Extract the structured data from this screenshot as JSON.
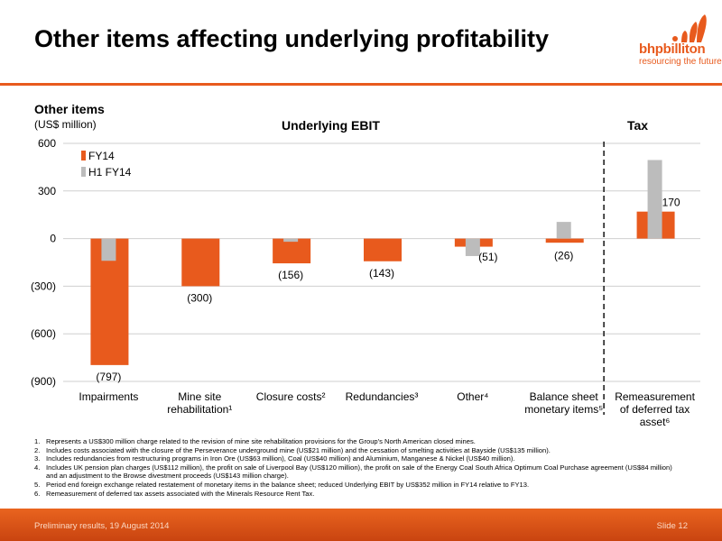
{
  "slide": {
    "title": "Other items affecting underlying profitability",
    "logo": {
      "word": "bhpbilliton",
      "tagline": "resourcing the future",
      "color": "#e85a1d"
    },
    "footer": {
      "left": "Preliminary results, 19 August 2014",
      "right": "Slide 12"
    },
    "footnotes": [
      {
        "num": "1.",
        "text": "Represents a US$300 million charge related to the revision of mine site rehabilitation provisions for the Group's North American closed mines."
      },
      {
        "num": "2.",
        "text": "Includes costs associated with the closure of the Perseverance underground mine (US$21 million) and the cessation of smelting activities at Bayside (US$135 million)."
      },
      {
        "num": "3.",
        "text": "Includes redundancies from restructuring programs in Iron Ore (US$63 million), Coal (US$40 million) and Aluminium, Manganese & Nickel (US$40 million)."
      },
      {
        "num": "4.",
        "text": "Includes UK pension plan charges (US$112 million), the profit on sale of Liverpool Bay (US$120 million), the profit on sale of the Energy Coal South Africa Optimum Coal Purchase agreement (US$84 million) and an adjustment to the Browse divestment proceeds (US$143 million charge)."
      },
      {
        "num": "5.",
        "text": "Period end foreign exchange related restatement of monetary items in the balance sheet; reduced Underlying EBIT by US$352 million in FY14 relative to FY13."
      },
      {
        "num": "6.",
        "text": "Remeasurement of deferred tax assets associated with the Minerals Resource Rent Tax."
      }
    ]
  },
  "chart_data": {
    "type": "bar",
    "title": "Other items",
    "ylabel": "(US$ million)",
    "ylim": [
      -900,
      600
    ],
    "yticks": [
      600,
      300,
      0,
      -300,
      -600,
      -900
    ],
    "ytick_labels": [
      "600",
      "300",
      "0",
      "(300)",
      "(600)",
      "(900)"
    ],
    "grid": true,
    "legend_position": "top-left",
    "sections": [
      {
        "label": "Underlying EBIT",
        "categories": [
          0,
          1,
          2,
          3,
          4,
          5
        ]
      },
      {
        "label": "Tax",
        "categories": [
          6
        ]
      }
    ],
    "categories": [
      "Impairments",
      "Mine site rehabilitation¹",
      "Closure costs²",
      "Redundancies³",
      "Other⁴",
      "Balance sheet monetary items⁵",
      "Remeasurement of deferred tax asset⁶"
    ],
    "category_lines": [
      [
        "Impairments"
      ],
      [
        "Mine site",
        "rehabilitation¹"
      ],
      [
        "Closure costs²"
      ],
      [
        "Redundancies³"
      ],
      [
        "Other⁴"
      ],
      [
        "Balance sheet",
        "monetary items⁵"
      ],
      [
        "Remeasurement",
        "of deferred tax",
        "asset⁶"
      ]
    ],
    "series": [
      {
        "name": "FY14",
        "color": "#e85a1d",
        "values": [
          -797,
          -300,
          -156,
          -143,
          -51,
          -26,
          170
        ]
      },
      {
        "name": "H1 FY14",
        "color": "#bcbcbc",
        "values": [
          -140,
          0,
          -20,
          0,
          -110,
          105,
          495
        ]
      }
    ],
    "data_labels": [
      "(797)",
      "(300)",
      "(156)",
      "(143)",
      "(51)",
      "(26)",
      "170"
    ]
  }
}
